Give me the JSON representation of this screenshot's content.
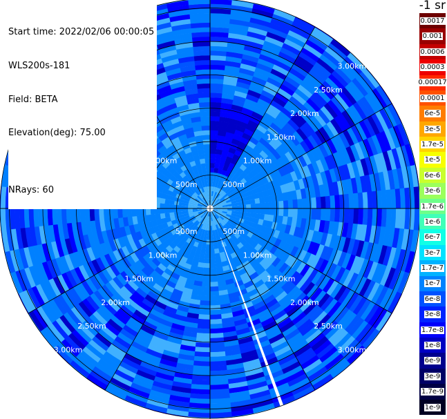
{
  "info": {
    "start_time": "Start time: 2022/02/06 00:00:05",
    "device": "WLS200s-181",
    "field": "Field: BETA",
    "elevation": "Elevation(deg): 75.00",
    "nrays": "NRays: 60"
  },
  "colorbar": {
    "unit_label": "-1 sr",
    "levels": [
      {
        "label": "0.0017",
        "color": "#6e0000"
      },
      {
        "label": "0.001",
        "color": "#990000"
      },
      {
        "label": "0.0006",
        "color": "#c30000"
      },
      {
        "label": "0.0003",
        "color": "#ee0000"
      },
      {
        "label": "0.00017",
        "color": "#ff2a00"
      },
      {
        "label": "0.0001",
        "color": "#ff5100"
      },
      {
        "label": "6e-5",
        "color": "#ff7d00"
      },
      {
        "label": "3e-5",
        "color": "#ffa700"
      },
      {
        "label": "1.7e-5",
        "color": "#ffd300"
      },
      {
        "label": "1e-5",
        "color": "#f7ff00"
      },
      {
        "label": "6e-6",
        "color": "#c9ff2e"
      },
      {
        "label": "3e-6",
        "color": "#9bff5c"
      },
      {
        "label": "1.7e-6",
        "color": "#6dff8a"
      },
      {
        "label": "1e-6",
        "color": "#3fffb8"
      },
      {
        "label": "6e-7",
        "color": "#11ffe6"
      },
      {
        "label": "3e-7",
        "color": "#00e2ff"
      },
      {
        "label": "1.7e-7",
        "color": "#00b2ff"
      },
      {
        "label": "1e-7",
        "color": "#0082ff"
      },
      {
        "label": "6e-8",
        "color": "#0052ff"
      },
      {
        "label": "3e-8",
        "color": "#0022ff"
      },
      {
        "label": "1.7e-8",
        "color": "#0000fa"
      },
      {
        "label": "1e-8",
        "color": "#0000c3"
      },
      {
        "label": "6e-9",
        "color": "#00008d"
      },
      {
        "label": "3e-9",
        "color": "#000066"
      },
      {
        "label": "1.7e-9",
        "color": "#000044"
      },
      {
        "label": "1e-9",
        "color": "#000022"
      }
    ]
  },
  "chart_data": {
    "type": "heatmap",
    "projection": "polar (PPI)",
    "field": "BETA",
    "range_rings": [
      {
        "range_m": 500,
        "label": "500m"
      },
      {
        "range_m": 1000,
        "label": "1.00km"
      },
      {
        "range_m": 1500,
        "label": "1.50km"
      },
      {
        "range_m": 2000,
        "label": "2.00km"
      },
      {
        "range_m": 2500,
        "label": "2.50km"
      },
      {
        "range_m": 3000,
        "label": "3.00km"
      }
    ],
    "max_range_m": 3140,
    "blind_range_m": 50,
    "azimuth_spokes_deg": [
      0,
      30,
      60,
      90,
      120,
      150,
      180,
      210,
      240,
      270,
      300,
      330
    ],
    "n_rays": 60,
    "colors": {
      "c1": "#0080ff",
      "c2": "#0055ff",
      "c3": "#002aff",
      "c4": "#0000ff",
      "c5": "#0000c8",
      "c6": "#40b0ff",
      "missing_ray": "#ffffff"
    },
    "inner_core_mean_level": "1e-7",
    "typical_level": "6e-8",
    "low_sector_azimuth_deg": [
      0,
      30
    ],
    "low_sector_level": "1e-8",
    "missing_ray_azimuth_deg": 160
  }
}
